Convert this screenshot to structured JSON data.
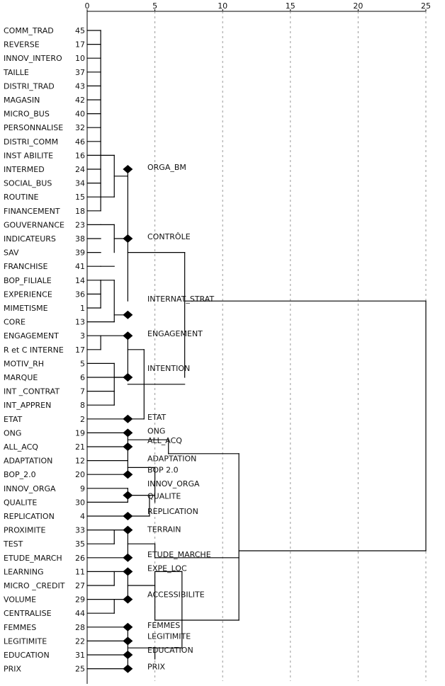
{
  "chart_data": {
    "type": "dendrogram",
    "axis": {
      "ticks": [
        0,
        5,
        10,
        15,
        20,
        25
      ],
      "range": [
        0,
        25
      ]
    },
    "rows": [
      {
        "label": "COMM_TRAD",
        "num": "45"
      },
      {
        "label": "REVERSE",
        "num": "17"
      },
      {
        "label": "INNOV_INTERO",
        "num": "10"
      },
      {
        "label": "TAILLE",
        "num": "37"
      },
      {
        "label": "DISTRI_TRAD",
        "num": "43"
      },
      {
        "label": "MAGASIN",
        "num": "42"
      },
      {
        "label": "MICRO_BUS",
        "num": "40"
      },
      {
        "label": "PERSONNALISE",
        "num": "32"
      },
      {
        "label": "DISTRI_COMM",
        "num": "46"
      },
      {
        "label": "INST ABILITE",
        "num": "16"
      },
      {
        "label": "INTERMED",
        "num": "24"
      },
      {
        "label": "SOCIAL_BUS",
        "num": "34"
      },
      {
        "label": "ROUTINE",
        "num": "15"
      },
      {
        "label": "FINANCEMENT",
        "num": "18"
      },
      {
        "label": "GOUVERNANCE",
        "num": "23"
      },
      {
        "label": "INDICATEURS",
        "num": "38"
      },
      {
        "label": "SAV",
        "num": "39"
      },
      {
        "label": "FRANCHISE",
        "num": "41"
      },
      {
        "label": "BOP_FILIALE",
        "num": "14"
      },
      {
        "label": "EXPERIENCE",
        "num": "36"
      },
      {
        "label": "MIMETISME",
        "num": "1"
      },
      {
        "label": "CORE",
        "num": "13"
      },
      {
        "label": "ENGAGEMENT",
        "num": "3"
      },
      {
        "label": "R et C INTERNE",
        "num": "17"
      },
      {
        "label": "MOTIV_RH",
        "num": "5"
      },
      {
        "label": "MARQUE",
        "num": "6"
      },
      {
        "label": "INT _CONTRAT",
        "num": "7"
      },
      {
        "label": "INT_APPREN",
        "num": "8"
      },
      {
        "label": "ETAT",
        "num": "2"
      },
      {
        "label": "ONG",
        "num": "19"
      },
      {
        "label": "ALL_ACQ",
        "num": "21"
      },
      {
        "label": "ADAPTATION",
        "num": "12"
      },
      {
        "label": "BOP_2.0",
        "num": "20"
      },
      {
        "label": "INNOV_ORGA",
        "num": "9"
      },
      {
        "label": "QUALITE",
        "num": "30"
      },
      {
        "label": "REPLICATION",
        "num": "4"
      },
      {
        "label": "PROXIMITE",
        "num": "33"
      },
      {
        "label": "TEST",
        "num": "35"
      },
      {
        "label": "ETUDE_MARCH",
        "num": "26"
      },
      {
        "label": "LEARNING",
        "num": "11"
      },
      {
        "label": "MICRO _CREDIT",
        "num": "27"
      },
      {
        "label": "VOLUME",
        "num": "29"
      },
      {
        "label": "CENTRALISE",
        "num": "44"
      },
      {
        "label": "FEMMES",
        "num": "28"
      },
      {
        "label": "LEGITIMITE",
        "num": "22"
      },
      {
        "label": "EDUCATION",
        "num": "31"
      },
      {
        "label": "PRIX",
        "num": "25"
      }
    ],
    "diamonds": [
      10,
      15,
      20.5,
      22,
      25,
      28,
      29,
      30,
      32,
      33.5,
      35,
      36,
      38,
      39,
      41,
      43,
      44,
      45,
      46
    ],
    "diamond_distance": 3,
    "cluster_labels": [
      {
        "text": "ORGA_BM",
        "row": 10
      },
      {
        "text": "CONTRÔLE",
        "row": 15
      },
      {
        "text": "INTERNAT_STRAT",
        "row": 19.5
      },
      {
        "text": "ENGAGEMENT",
        "row": 22
      },
      {
        "text": "INTENTION",
        "row": 24.5
      },
      {
        "text": "ETAT",
        "row": 28
      },
      {
        "text": "ONG",
        "row": 29
      },
      {
        "text": "ALL_ACQ",
        "row": 29.7
      },
      {
        "text": "ADAPTATION",
        "row": 31
      },
      {
        "text": "BOP 2.0",
        "row": 31.8
      },
      {
        "text": "INNOV_ORGA",
        "row": 32.8
      },
      {
        "text": "QUALITE",
        "row": 33.7
      },
      {
        "text": "REPLICATION",
        "row": 34.8
      },
      {
        "text": "TERRAIN",
        "row": 36.1
      },
      {
        "text": "ETUDE_MARCHE",
        "row": 37.9
      },
      {
        "text": "EXPE_LOC",
        "row": 38.9
      },
      {
        "text": "ACCESSIBILITE",
        "row": 40.8
      },
      {
        "text": "FEMMES",
        "row": 43
      },
      {
        "text": "LEGITIMITE",
        "row": 43.8
      },
      {
        "text": "EDUCATION",
        "row": 44.8
      },
      {
        "text": "PRIX",
        "row": 46
      }
    ]
  }
}
